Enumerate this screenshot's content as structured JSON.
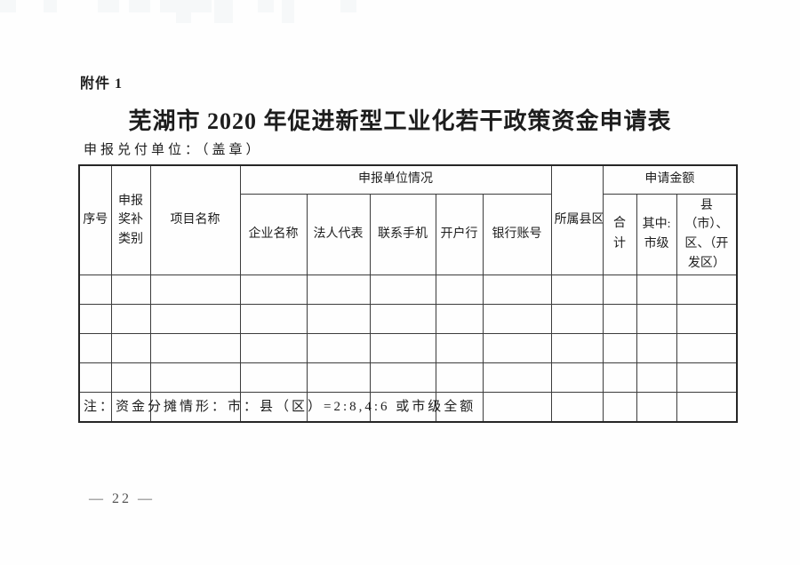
{
  "colors": {
    "ink": "#1d1d1d",
    "border": "#3c3c3c",
    "muted": "#555555"
  },
  "page": {
    "attachment_label": "附件 1",
    "title": "芜湖市 2020 年促进新型工业化若干政策资金申请表",
    "declare_unit_line": "申报兑付单位：（盖章）",
    "note": "注：资金分摊情形：市：县（区）=2:8,4:6 或市级全额",
    "page_number": "— 22 —"
  },
  "table": {
    "header": {
      "seq": "序号",
      "award_category": "申报奖补类别",
      "project_name": "项目名称",
      "unit_info_group": "申报单位情况",
      "unit_info_cols": [
        "企业名称",
        "法人代表",
        "联系手机",
        "开户行",
        "银行账号"
      ],
      "district": "所属县区",
      "amount_group": "申请金额",
      "amount_cols": [
        "合计",
        "其中:市级",
        "县（市）、区、（开发区）"
      ]
    },
    "body_rows": 5,
    "columns": 12
  }
}
